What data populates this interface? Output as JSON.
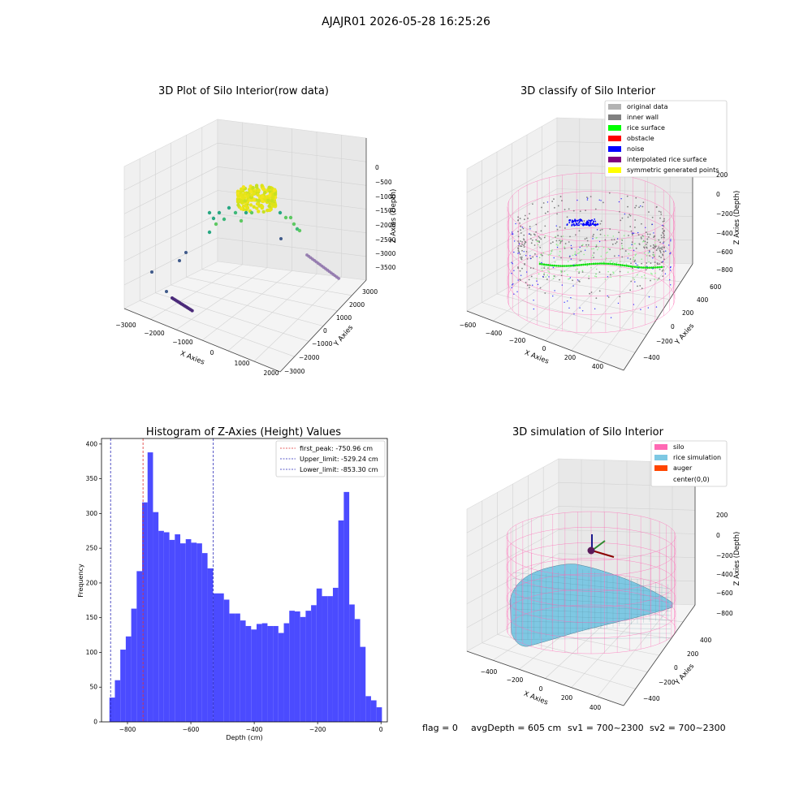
{
  "figure": {
    "suptitle": "AJAJR01 2026-05-28 16:25:26",
    "footer": {
      "flag": "flag = 0",
      "avg_depth": "avgDepth = 605 cm",
      "sv1": "sv1 = 700~2300",
      "sv2": "sv2 = 700~2300"
    }
  },
  "colors": {
    "hist_bar": "#4b4bff",
    "first_peak": "#e03030",
    "limit_line": "#2a2ab8",
    "silo": "#ff69b4",
    "rice_sim": "#7ec8e3",
    "auger": "#ff4500",
    "inner_wall": "#808080",
    "rice_surface": "#00ff00",
    "obstacle": "#ff0000",
    "noise": "#0000ff",
    "interp": "#800080",
    "symmetric": "#ffff00",
    "original": "#b3b3b3"
  },
  "chart_data": [
    {
      "type": "scatter",
      "title": "3D Plot of Silo Interior(row data)",
      "xlabel": "X Axies",
      "ylabel": "Y Axies",
      "zlabel": "Z Axies (Depth)",
      "xticks": [
        "−3000",
        "−2000",
        "−1000",
        "0",
        "1000",
        "2000"
      ],
      "yticks": [
        "−3000",
        "−2000",
        "−1000",
        "0",
        "1000",
        "2000",
        "3000"
      ],
      "zticks": [
        "0",
        "−500",
        "−1000",
        "−1500",
        "−2000",
        "−2500",
        "−3000",
        "−3500"
      ]
    },
    {
      "type": "scatter",
      "title": "3D classify of Silo Interior",
      "xlabel": "X Axies",
      "ylabel": "Y Axies",
      "zlabel": "Z Axies (Depth)",
      "xticks": [
        "−600",
        "−400",
        "−200",
        "0",
        "200",
        "400"
      ],
      "yticks": [
        "−400",
        "−200",
        "0",
        "200",
        "400",
        "600"
      ],
      "zticks": [
        "200",
        "0",
        "−200",
        "−400",
        "−600",
        "−800"
      ],
      "legend": [
        "original data",
        "inner wall",
        "rice surface",
        "obstacle",
        "noise",
        "interpolated rice surface",
        "symmetric generated points"
      ],
      "legend_loc": "upper right"
    },
    {
      "type": "bar",
      "title": "Histogram of Z-Axies (Height) Values",
      "xlabel": "Depth (cm)",
      "ylabel": "Frequency",
      "bin_start": -857,
      "bin_width": 17.2,
      "values": [
        35,
        60,
        104,
        123,
        163,
        217,
        316,
        388,
        302,
        275,
        273,
        262,
        270,
        257,
        263,
        258,
        257,
        243,
        221,
        185,
        185,
        176,
        156,
        156,
        146,
        138,
        133,
        141,
        142,
        138,
        138,
        128,
        142,
        160,
        159,
        151,
        160,
        168,
        192,
        181,
        181,
        193,
        290,
        331,
        169,
        148,
        108,
        37,
        31,
        21
      ],
      "xlim": [
        -882,
        20
      ],
      "ylim": [
        0,
        408
      ],
      "xticks": [
        -800,
        -600,
        -400,
        -200,
        0
      ],
      "xtick_labels": [
        "−800",
        "−600",
        "−400",
        "−200",
        "0"
      ],
      "yticks": [
        0,
        50,
        100,
        150,
        200,
        250,
        300,
        350,
        400
      ],
      "lines": [
        {
          "label": "first_peak: -750.96 cm",
          "x": -750.96,
          "role": "first_peak"
        },
        {
          "label": "Upper_limit: -529.24 cm",
          "x": -529.24,
          "role": "limit"
        },
        {
          "label": "Lower_limit: -853.30 cm",
          "x": -853.3,
          "role": "limit"
        }
      ],
      "legend_loc": "upper right"
    },
    {
      "type": "scatter",
      "title": "3D simulation of Silo Interior",
      "xlabel": "X Axies",
      "ylabel": "Y Axies",
      "zlabel": "Z Axies (Depth)",
      "xticks": [
        "−400",
        "−200",
        "0",
        "200",
        "400"
      ],
      "yticks": [
        "−400",
        "−200",
        "0",
        "200",
        "400"
      ],
      "zticks": [
        "200",
        "0",
        "−200",
        "−400",
        "−600",
        "−800"
      ],
      "legend": [
        "silo",
        "rice simulation",
        "auger",
        "center(0,0)"
      ],
      "legend_loc": "upper right"
    }
  ]
}
